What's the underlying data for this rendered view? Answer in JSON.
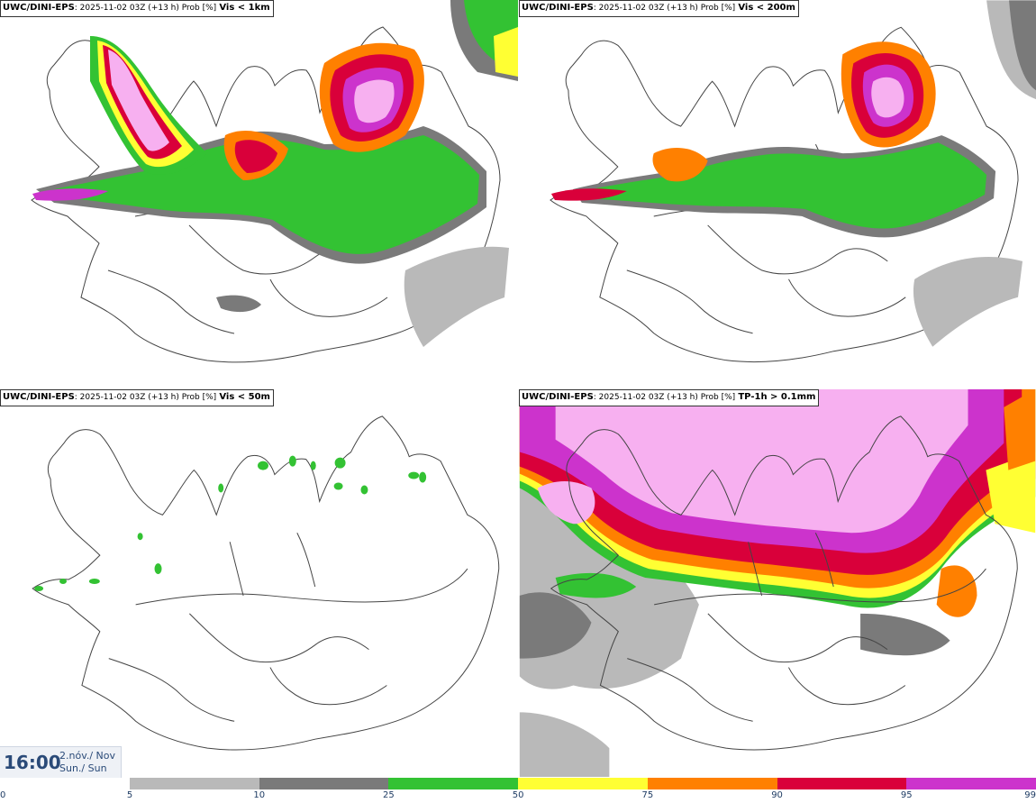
{
  "panels": [
    {
      "model": "UWC/DINI-EPS",
      "run": ": 2025-11-02 03Z (+13 h) Prob [%]",
      "variable": "Vis < 1km"
    },
    {
      "model": "UWC/DINI-EPS",
      "run": ": 2025-11-02 03Z (+13 h) Prob [%]",
      "variable": "Vis < 200m"
    },
    {
      "model": "UWC/DINI-EPS",
      "run": ": 2025-11-02 03Z (+13 h) Prob [%]",
      "variable": "Vis < 50m"
    },
    {
      "model": "UWC/DINI-EPS",
      "run": ": 2025-11-02 03Z (+13 h) Prob [%]",
      "variable": "TP-1h > 0.1mm"
    }
  ],
  "valid_time": {
    "hour": "16:00",
    "date_line": "2.nóv./ Nov",
    "day_line": "Sun./ Sun"
  },
  "colorbar": {
    "ticks": [
      "0",
      "5",
      "10",
      "25",
      "50",
      "75",
      "90",
      "95",
      "99"
    ],
    "colors": [
      "#ffffff",
      "#b9b9b9",
      "#7a7a7a",
      "#33c233",
      "#ffff33",
      "#ff8000",
      "#d9003a",
      "#cc33cc",
      "#f7b0f0"
    ]
  },
  "colors": {
    "outline": "#444444",
    "background": "#ffffff"
  }
}
